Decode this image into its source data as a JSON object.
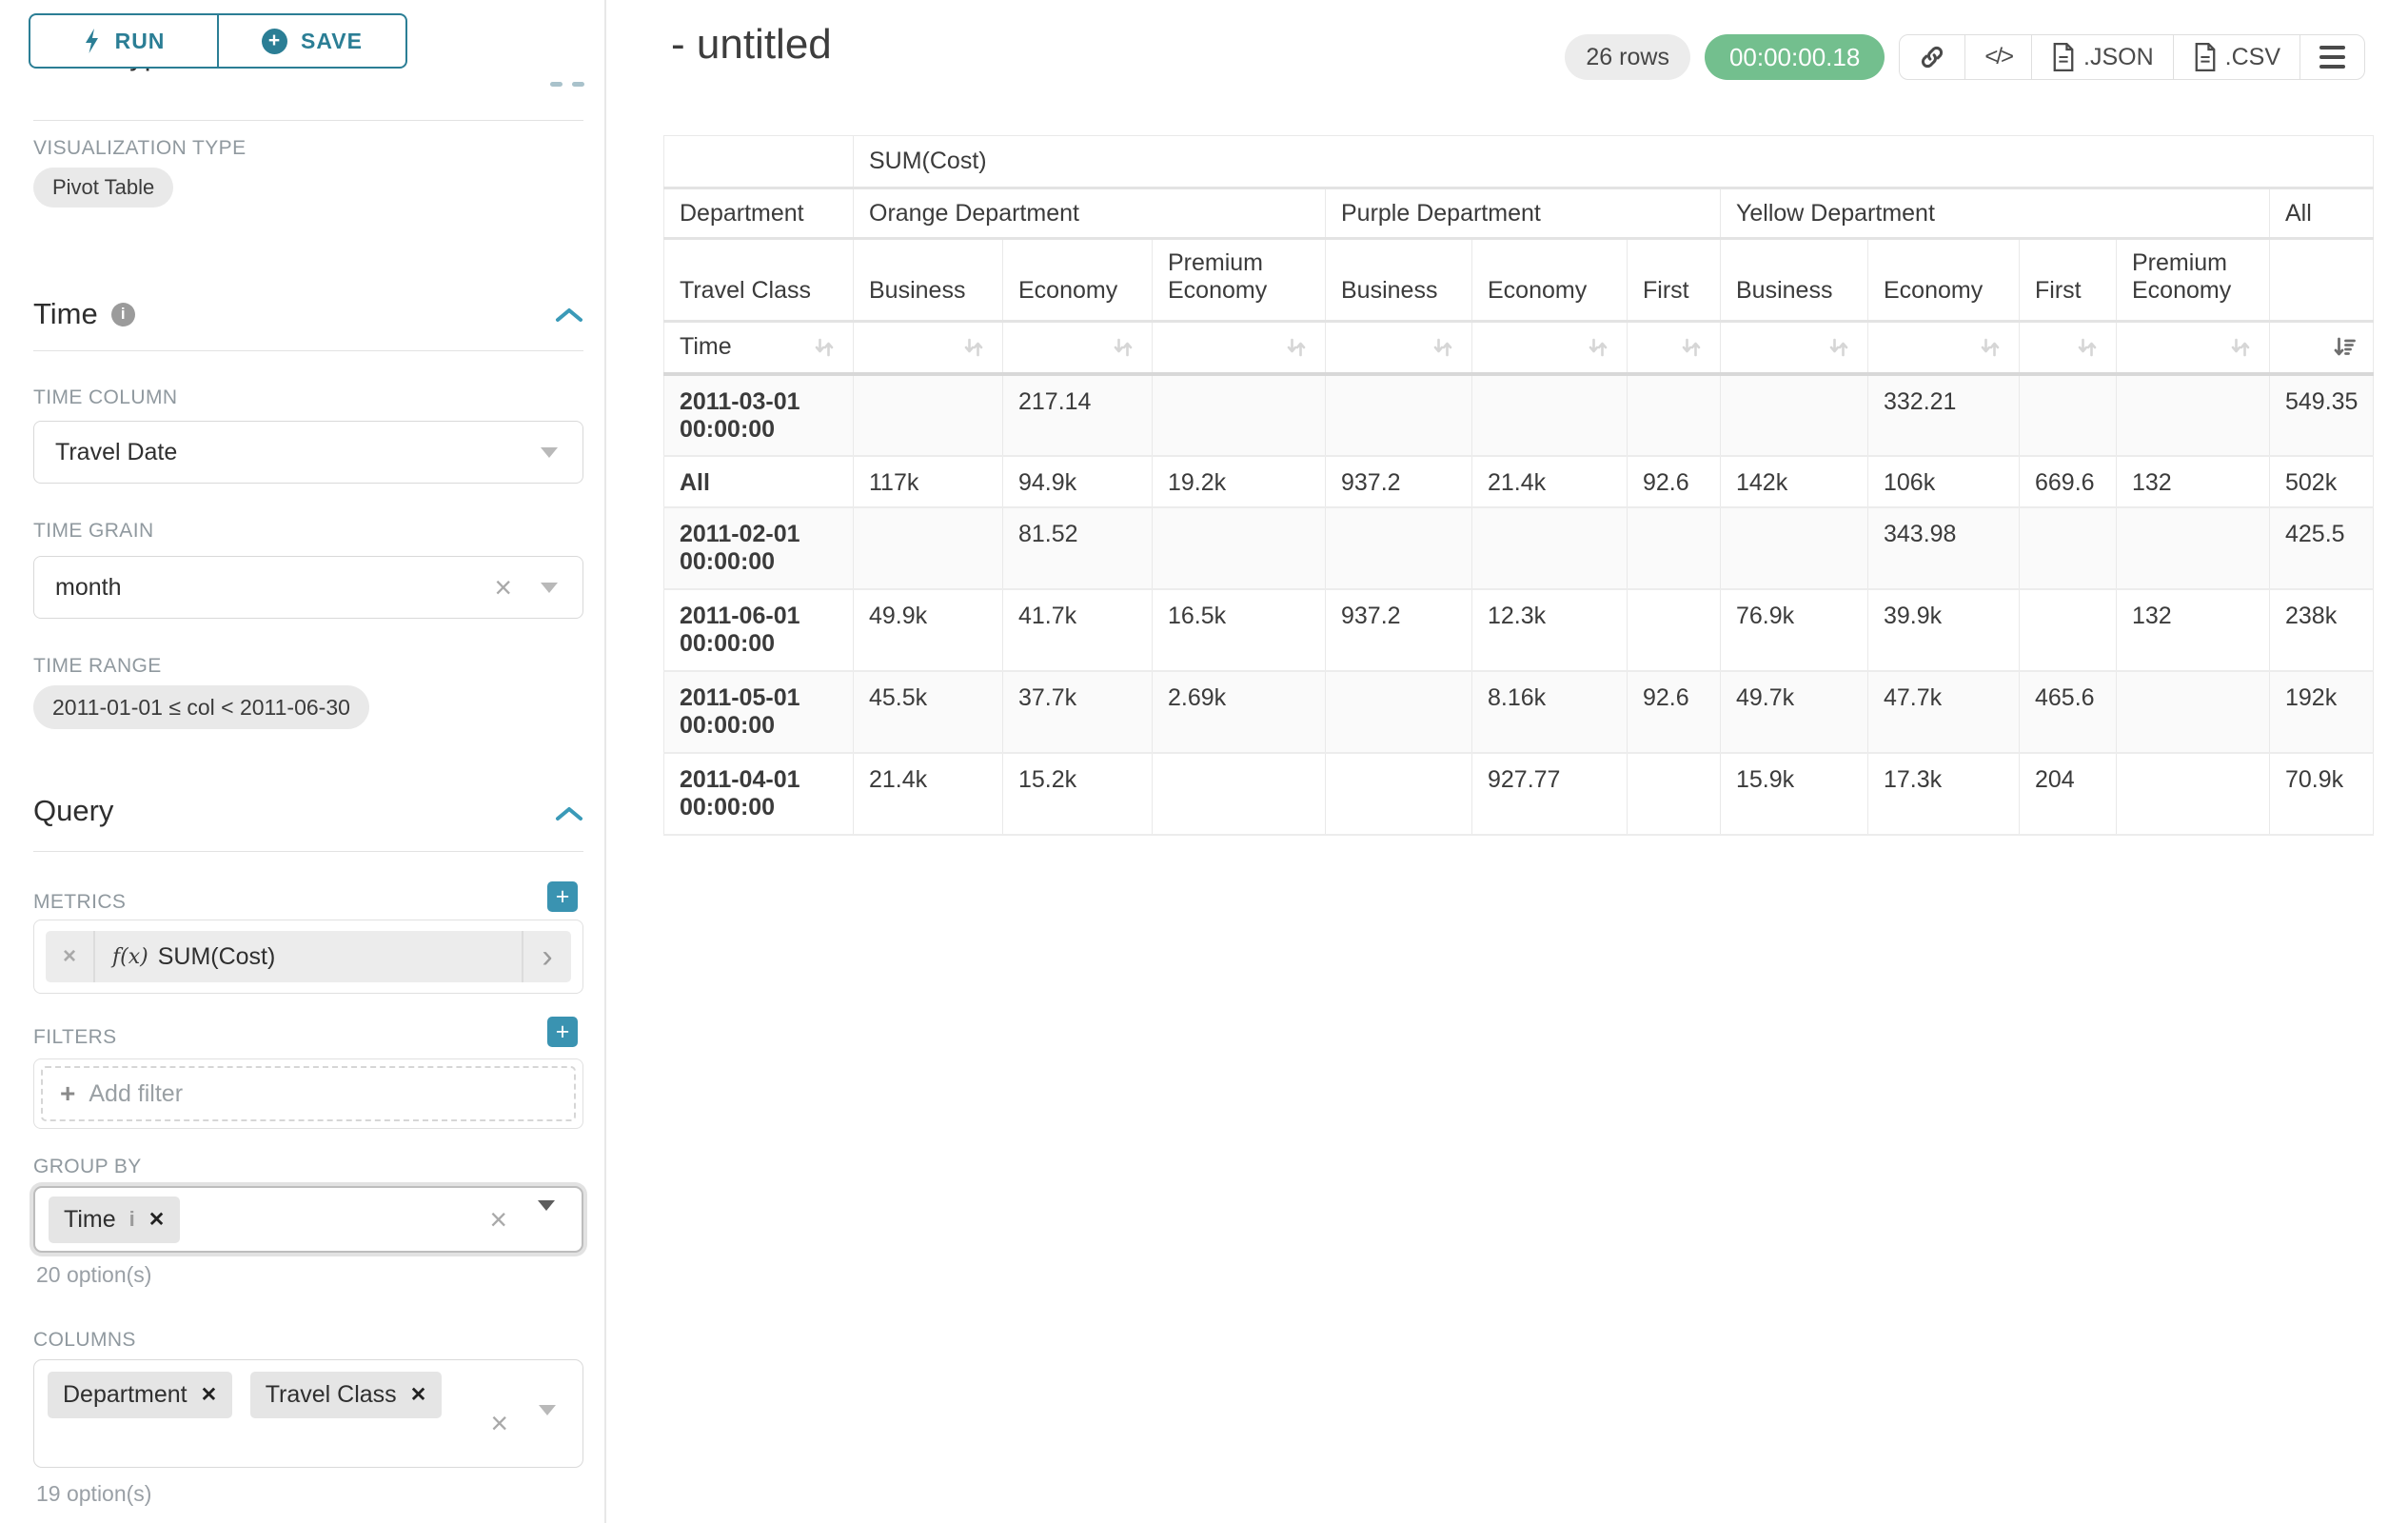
{
  "sidebar": {
    "run_label": "RUN",
    "save_label": "SAVE",
    "chart_type_section": "Chart Type",
    "visualization_type_label": "VISUALIZATION TYPE",
    "visualization_type_value": "Pivot Table",
    "time_section": "Time",
    "time_column_label": "TIME COLUMN",
    "time_column_value": "Travel Date",
    "time_grain_label": "TIME GRAIN",
    "time_grain_value": "month",
    "time_range_label": "TIME RANGE",
    "time_range_value": "2011-01-01 ≤ col < 2011-06-30",
    "query_section": "Query",
    "metrics_label": "METRICS",
    "metric_fx": "f(x)",
    "metric_chip": "SUM(Cost)",
    "filters_label": "FILTERS",
    "add_filter_label": "Add filter",
    "group_by_label": "GROUP BY",
    "group_by_chips": [
      "Time"
    ],
    "group_by_hint": "20 option(s)",
    "columns_label": "COLUMNS",
    "columns_chips": [
      "Department",
      "Travel Class"
    ],
    "columns_hint": "19 option(s)"
  },
  "header": {
    "title": "- untitled",
    "row_count": "26 rows",
    "timer": "00:00:00.18",
    "json_label": ".JSON",
    "csv_label": ".CSV"
  },
  "chart_data": {
    "type": "table",
    "metric_header": "SUM(Cost)",
    "row_dimension": "Time",
    "column_dimensions": [
      "Department",
      "Travel Class"
    ],
    "groups": [
      {
        "label": "Orange Department",
        "cols": [
          "Business",
          "Economy",
          "Premium Economy"
        ]
      },
      {
        "label": "Purple Department",
        "cols": [
          "Business",
          "Economy",
          "First"
        ]
      },
      {
        "label": "Yellow Department",
        "cols": [
          "Business",
          "Economy",
          "First",
          "Premium Economy"
        ]
      },
      {
        "label": "All",
        "cols": [
          ""
        ]
      }
    ],
    "sort_state": {
      "column": "All",
      "direction": "desc"
    },
    "rows": [
      {
        "label": "2011-03-01 00:00:00",
        "values": [
          "",
          "217.14",
          "",
          "",
          "",
          "",
          "",
          "332.21",
          "",
          "",
          "549.35"
        ]
      },
      {
        "label": "All",
        "values": [
          "117k",
          "94.9k",
          "19.2k",
          "937.2",
          "21.4k",
          "92.6",
          "142k",
          "106k",
          "669.6",
          "132",
          "502k"
        ]
      },
      {
        "label": "2011-02-01 00:00:00",
        "values": [
          "",
          "81.52",
          "",
          "",
          "",
          "",
          "",
          "343.98",
          "",
          "",
          "425.5"
        ]
      },
      {
        "label": "2011-06-01 00:00:00",
        "values": [
          "49.9k",
          "41.7k",
          "16.5k",
          "937.2",
          "12.3k",
          "",
          "76.9k",
          "39.9k",
          "",
          "132",
          "238k"
        ]
      },
      {
        "label": "2011-05-01 00:00:00",
        "values": [
          "45.5k",
          "37.7k",
          "2.69k",
          "",
          "8.16k",
          "92.6",
          "49.7k",
          "47.7k",
          "465.6",
          "",
          "192k"
        ]
      },
      {
        "label": "2011-04-01 00:00:00",
        "values": [
          "21.4k",
          "15.2k",
          "",
          "",
          "927.77",
          "",
          "15.9k",
          "17.3k",
          "204",
          "",
          "70.9k"
        ]
      }
    ]
  }
}
